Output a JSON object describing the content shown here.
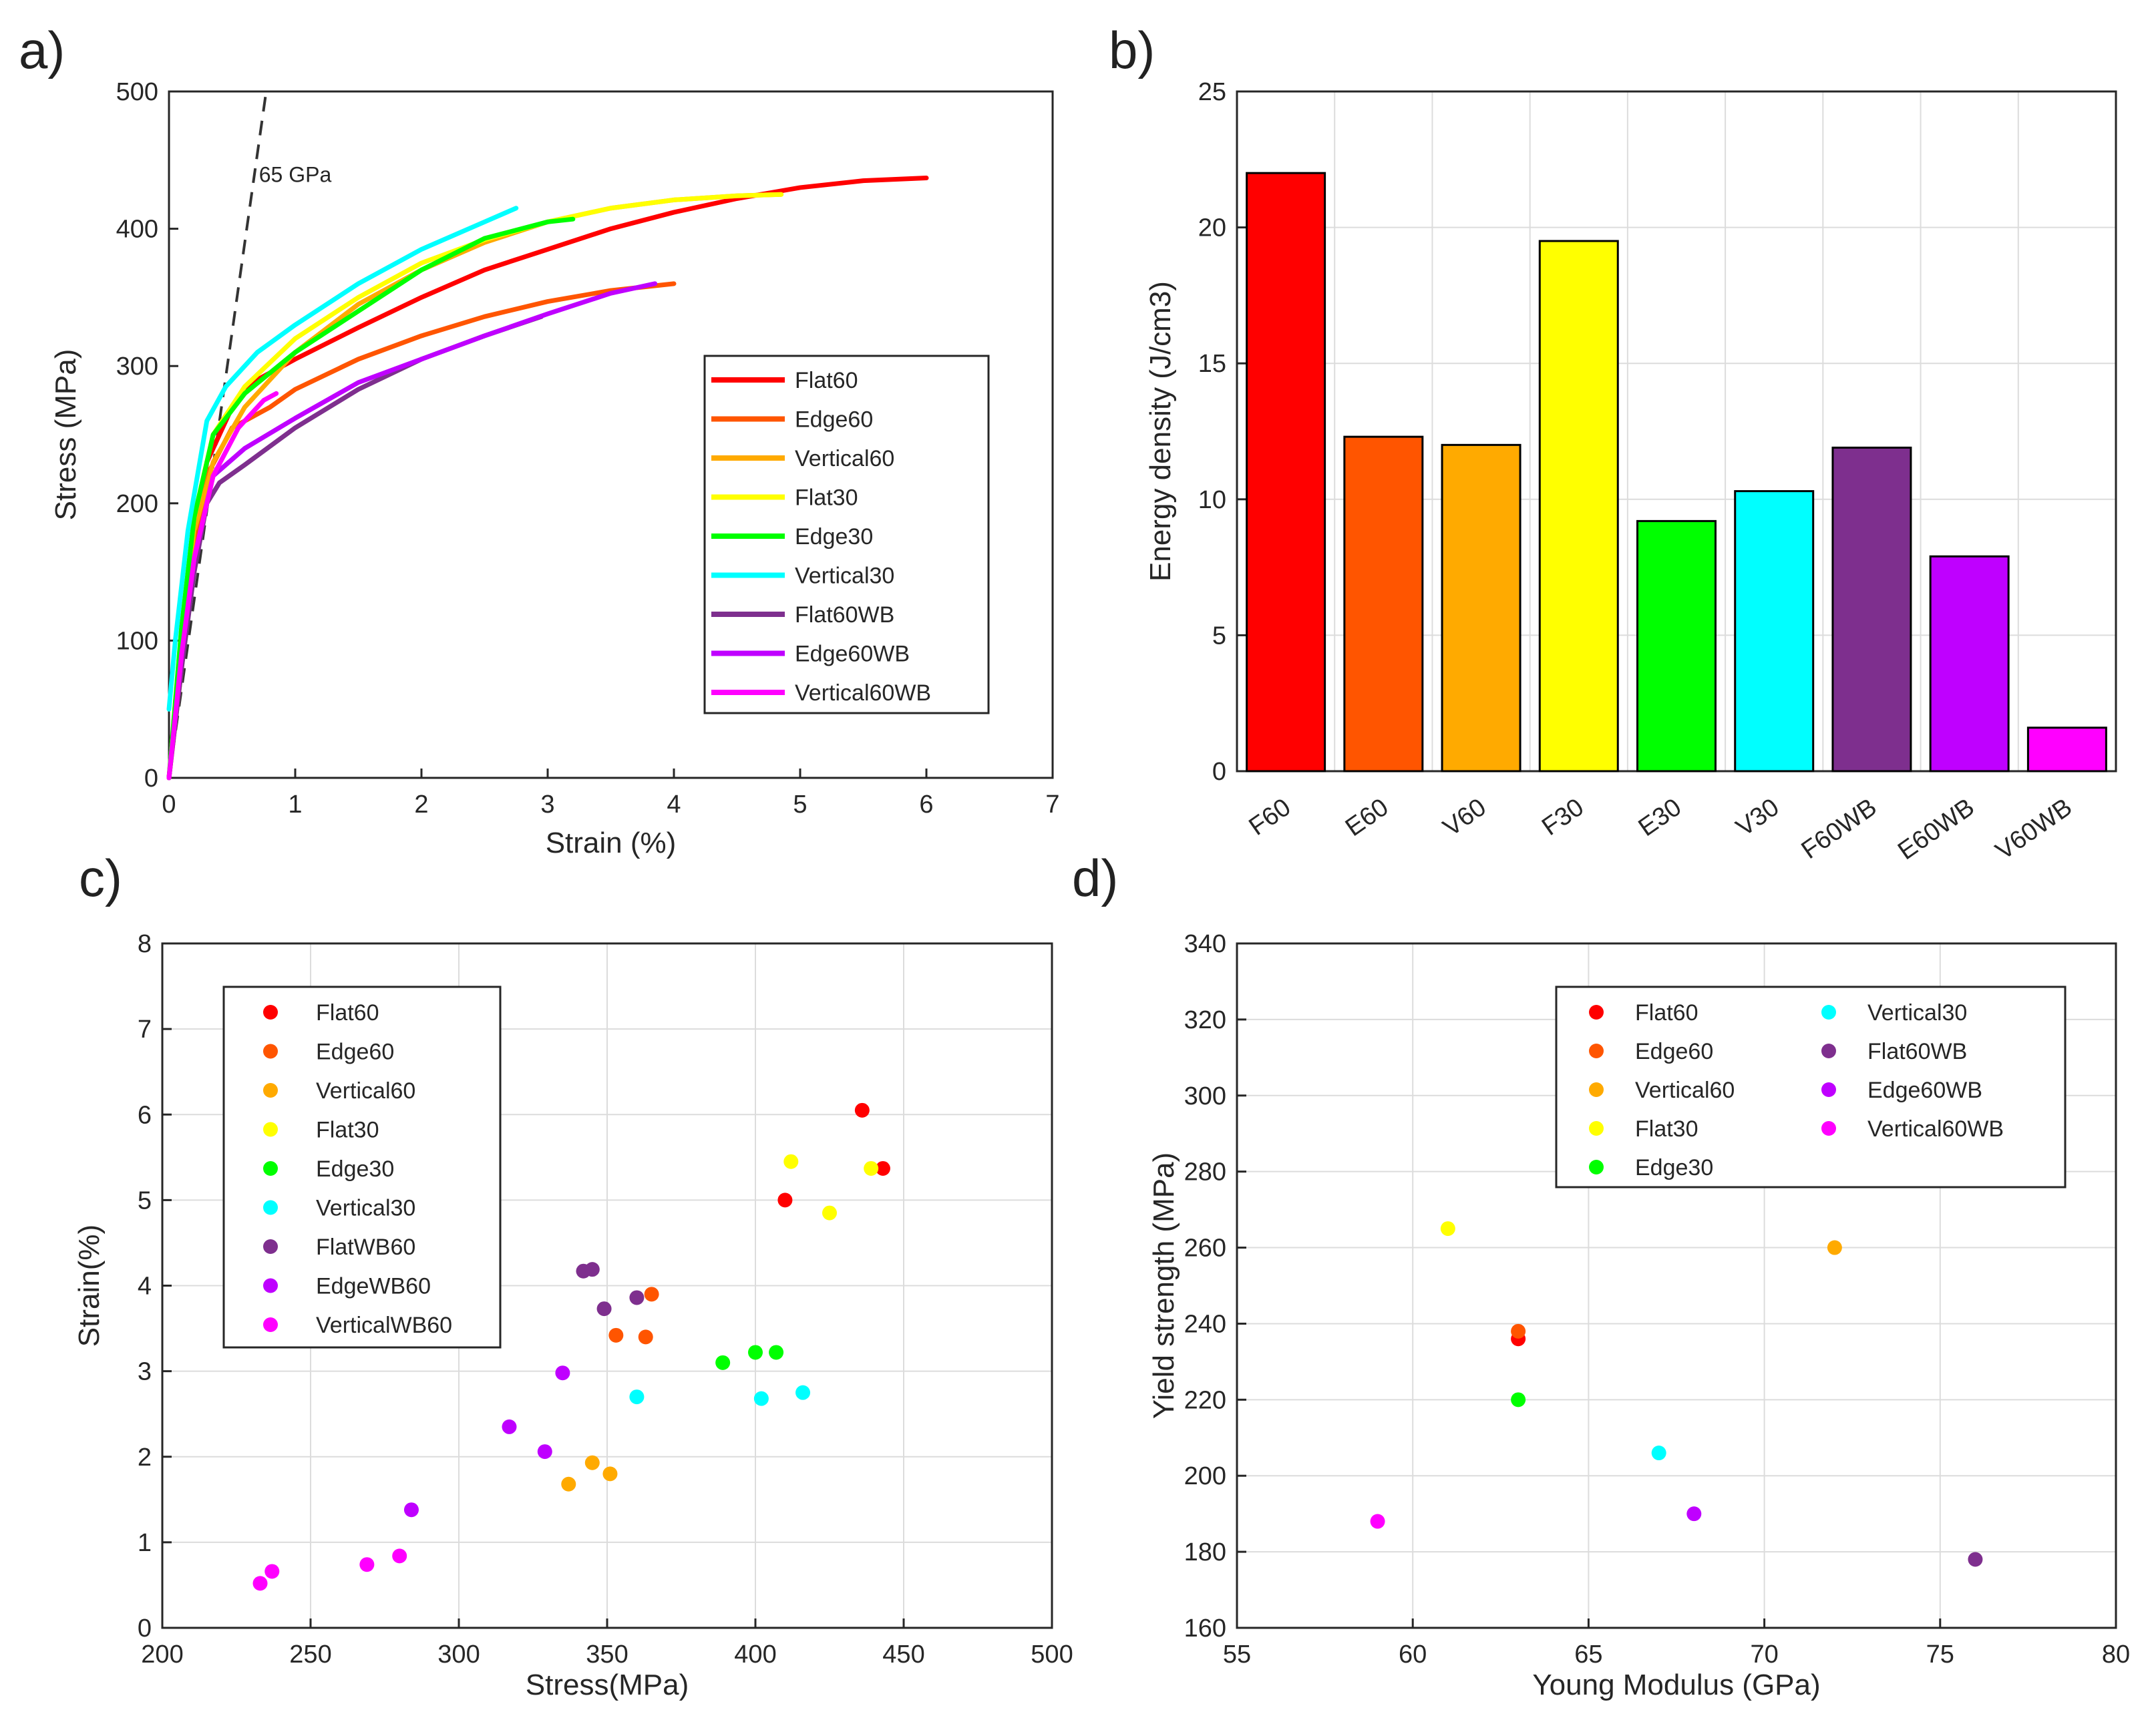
{
  "panels": {
    "a": "a)",
    "b": "b)",
    "c": "c)",
    "d": "d)"
  },
  "chart_data": [
    {
      "type": "line",
      "panel": "a",
      "xlabel": "Strain (%)",
      "ylabel": "Stress (MPa)",
      "xlim": [
        0,
        7
      ],
      "ylim": [
        0,
        500
      ],
      "xticks": [
        0,
        1,
        2,
        3,
        4,
        5,
        6,
        7
      ],
      "yticks": [
        0,
        100,
        200,
        300,
        400,
        500
      ],
      "grid": false,
      "legend": "center-right",
      "annotation": {
        "text": "65 GPa",
        "x": 1.0,
        "y": 440
      },
      "reference_line": {
        "name": "65 GPa",
        "x": [
          0,
          0.77
        ],
        "y": [
          0,
          500
        ],
        "dashed": true
      },
      "series": [
        {
          "name": "Flat60",
          "color": "#ff0000",
          "x": [
            0,
            0.15,
            0.3,
            0.5,
            0.7,
            1,
            1.5,
            2,
            2.5,
            3,
            3.5,
            4,
            4.5,
            5,
            5.5,
            6
          ],
          "y": [
            0,
            130,
            230,
            270,
            290,
            305,
            328,
            350,
            370,
            385,
            400,
            412,
            422,
            430,
            435,
            437
          ]
        },
        {
          "name": "Edge60",
          "color": "#ff5500",
          "x": [
            0,
            0.15,
            0.3,
            0.5,
            0.8,
            1,
            1.5,
            2,
            2.5,
            3,
            3.5,
            4
          ],
          "y": [
            0,
            120,
            220,
            255,
            270,
            283,
            305,
            322,
            336,
            347,
            355,
            360
          ]
        },
        {
          "name": "Vertical60",
          "color": "#ffaa00",
          "x": [
            0,
            0.1,
            0.2,
            0.35,
            0.6,
            1,
            1.5,
            2,
            2.5,
            3,
            3.5,
            4,
            4.5,
            4.85
          ],
          "y": [
            0,
            100,
            180,
            230,
            270,
            310,
            345,
            370,
            390,
            405,
            415,
            421,
            424,
            425
          ]
        },
        {
          "name": "Flat30",
          "color": "#ffff00",
          "x": [
            0,
            0.1,
            0.2,
            0.35,
            0.6,
            1,
            1.5,
            2,
            2.5,
            3,
            3.5,
            4,
            4.5,
            4.85
          ],
          "y": [
            0,
            110,
            190,
            250,
            285,
            320,
            350,
            375,
            392,
            405,
            415,
            421,
            424,
            425
          ]
        },
        {
          "name": "Edge30",
          "color": "#00ff00",
          "x": [
            0,
            0.1,
            0.2,
            0.35,
            0.6,
            1,
            1.5,
            2,
            2.5,
            3,
            3.2
          ],
          "y": [
            0,
            110,
            190,
            250,
            280,
            310,
            340,
            370,
            393,
            405,
            407
          ]
        },
        {
          "name": "Vertical30",
          "color": "#00ffff",
          "x": [
            0,
            0.05,
            0.15,
            0.3,
            0.45,
            0.7,
            1,
            1.5,
            2,
            2.5,
            2.75
          ],
          "y": [
            50,
            100,
            180,
            260,
            285,
            310,
            330,
            360,
            385,
            405,
            415
          ]
        },
        {
          "name": "Flat60WB",
          "color": "#7e2f8e",
          "x": [
            0,
            0.1,
            0.2,
            0.3,
            0.4,
            0.6,
            1,
            1.5,
            2,
            2.5,
            2.95
          ],
          "y": [
            0,
            80,
            150,
            200,
            215,
            228,
            255,
            283,
            305,
            322,
            336
          ]
        },
        {
          "name": "Edge60WB",
          "color": "#bf00ff",
          "x": [
            0,
            0.1,
            0.2,
            0.35,
            0.6,
            1,
            1.5,
            2,
            2.5,
            3,
            3.5,
            3.85
          ],
          "y": [
            0,
            90,
            160,
            220,
            240,
            262,
            288,
            305,
            322,
            338,
            353,
            360
          ]
        },
        {
          "name": "Vertical60WB",
          "color": "#ff00ff",
          "x": [
            0,
            0.1,
            0.2,
            0.35,
            0.55,
            0.75,
            0.85
          ],
          "y": [
            0,
            90,
            160,
            220,
            255,
            275,
            280
          ]
        }
      ]
    },
    {
      "type": "bar",
      "panel": "b",
      "ylabel": "Energy density (J/cm3)",
      "xlabel": "",
      "ylim": [
        0,
        25
      ],
      "yticks": [
        0,
        5,
        10,
        15,
        20,
        25
      ],
      "grid": true,
      "categories": [
        "F60",
        "E60",
        "V60",
        "F30",
        "E30",
        "V30",
        "F60WB",
        "E60WB",
        "V60WB"
      ],
      "values": [
        22,
        12.3,
        12,
        19.5,
        9.2,
        10.3,
        11.9,
        7.9,
        1.6
      ],
      "colors": [
        "#ff0000",
        "#ff5500",
        "#ffaa00",
        "#ffff00",
        "#00ff00",
        "#00ffff",
        "#7e2f8e",
        "#bf00ff",
        "#ff00ff"
      ]
    },
    {
      "type": "scatter",
      "panel": "c",
      "xlabel": "Stress(MPa)",
      "ylabel": "Strain(%)",
      "xlim": [
        200,
        500
      ],
      "ylim": [
        0,
        8
      ],
      "xticks": [
        200,
        250,
        300,
        350,
        400,
        450,
        500
      ],
      "yticks": [
        0,
        1,
        2,
        3,
        4,
        5,
        6,
        7,
        8
      ],
      "grid": true,
      "legend": "top-left",
      "series": [
        {
          "name": "Flat60",
          "color": "#ff0000",
          "points": [
            [
              436,
              6.05
            ],
            [
              443,
              5.37
            ],
            [
              410,
              5.0
            ]
          ]
        },
        {
          "name": "Edge60",
          "color": "#ff5500",
          "points": [
            [
              365,
              3.9
            ],
            [
              353,
              3.42
            ],
            [
              363,
              3.4
            ]
          ]
        },
        {
          "name": "Vertical60",
          "color": "#ffaa00",
          "points": [
            [
              345,
              1.93
            ],
            [
              351,
              1.8
            ],
            [
              337,
              1.68
            ]
          ]
        },
        {
          "name": "Flat30",
          "color": "#ffff00",
          "points": [
            [
              412,
              5.45
            ],
            [
              439,
              5.37
            ],
            [
              425,
              4.85
            ]
          ]
        },
        {
          "name": "Edge30",
          "color": "#00ff00",
          "points": [
            [
              400,
              3.22
            ],
            [
              407,
              3.22
            ],
            [
              389,
              3.1
            ]
          ]
        },
        {
          "name": "Vertical30",
          "color": "#00ffff",
          "points": [
            [
              360,
              2.7
            ],
            [
              402,
              2.68
            ],
            [
              416,
              2.75
            ]
          ]
        },
        {
          "name": "FlatWB60",
          "color": "#7e2f8e",
          "points": [
            [
              342,
              4.17
            ],
            [
              345,
              4.19
            ],
            [
              349,
              3.73
            ],
            [
              360,
              3.86
            ]
          ]
        },
        {
          "name": "EdgeWB60",
          "color": "#bf00ff",
          "points": [
            [
              335,
              2.98
            ],
            [
              317,
              2.35
            ],
            [
              329,
              2.06
            ],
            [
              284,
              1.38
            ]
          ]
        },
        {
          "name": "VerticalWB60",
          "color": "#ff00ff",
          "points": [
            [
              237,
              0.66
            ],
            [
              233,
              0.52
            ],
            [
              269,
              0.74
            ],
            [
              280,
              0.84
            ]
          ]
        }
      ]
    },
    {
      "type": "scatter",
      "panel": "d",
      "xlabel": "Young Modulus (GPa)",
      "ylabel": "Yield strength (MPa)",
      "xlim": [
        55,
        80
      ],
      "ylim": [
        160,
        340
      ],
      "xticks": [
        55,
        60,
        65,
        70,
        75,
        80
      ],
      "yticks": [
        160,
        180,
        200,
        220,
        240,
        260,
        280,
        300,
        320,
        340
      ],
      "grid": true,
      "legend": "top-right",
      "series": [
        {
          "name": "Flat60",
          "color": "#ff0000",
          "points": [
            [
              63,
              236
            ]
          ]
        },
        {
          "name": "Edge60",
          "color": "#ff5500",
          "points": [
            [
              63,
              238
            ]
          ]
        },
        {
          "name": "Vertical60",
          "color": "#ffaa00",
          "points": [
            [
              72,
              260
            ]
          ]
        },
        {
          "name": "Flat30",
          "color": "#ffff00",
          "points": [
            [
              61,
              265
            ]
          ]
        },
        {
          "name": "Edge30",
          "color": "#00ff00",
          "points": [
            [
              63,
              220
            ]
          ]
        },
        {
          "name": "Vertical30",
          "color": "#00ffff",
          "points": [
            [
              67,
              206
            ]
          ]
        },
        {
          "name": "Flat60WB",
          "color": "#7e2f8e",
          "points": [
            [
              76,
              178
            ]
          ]
        },
        {
          "name": "Edge60WB",
          "color": "#bf00ff",
          "points": [
            [
              68,
              190
            ]
          ]
        },
        {
          "name": "Vertical60WB",
          "color": "#ff00ff",
          "points": [
            [
              59,
              188
            ]
          ]
        }
      ]
    }
  ]
}
